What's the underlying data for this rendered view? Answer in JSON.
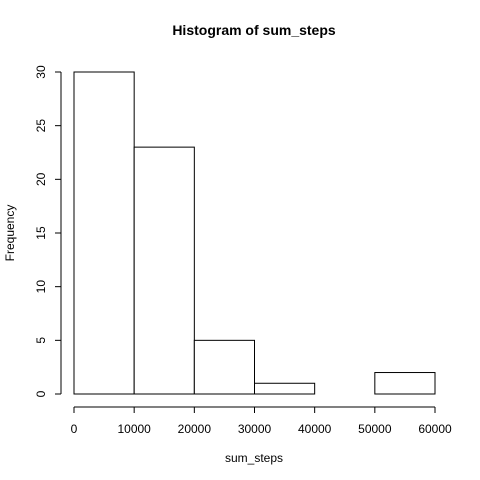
{
  "chart_data": {
    "type": "bar",
    "title": "Histogram of sum_steps",
    "xlabel": "sum_steps",
    "ylabel": "Frequency",
    "bins": [
      {
        "start": 0,
        "end": 10000,
        "count": 30
      },
      {
        "start": 10000,
        "end": 20000,
        "count": 23
      },
      {
        "start": 20000,
        "end": 30000,
        "count": 5
      },
      {
        "start": 30000,
        "end": 40000,
        "count": 1
      },
      {
        "start": 40000,
        "end": 50000,
        "count": 0
      },
      {
        "start": 50000,
        "end": 60000,
        "count": 2
      }
    ],
    "xlim": [
      0,
      60000
    ],
    "ylim": [
      0,
      30
    ],
    "x_ticks": [
      0,
      10000,
      20000,
      30000,
      40000,
      50000,
      60000
    ],
    "y_ticks": [
      0,
      5,
      10,
      15,
      20,
      25,
      30
    ],
    "grid": false,
    "colors": {
      "bar_fill": "#ffffff",
      "bar_stroke": "#000000"
    }
  }
}
